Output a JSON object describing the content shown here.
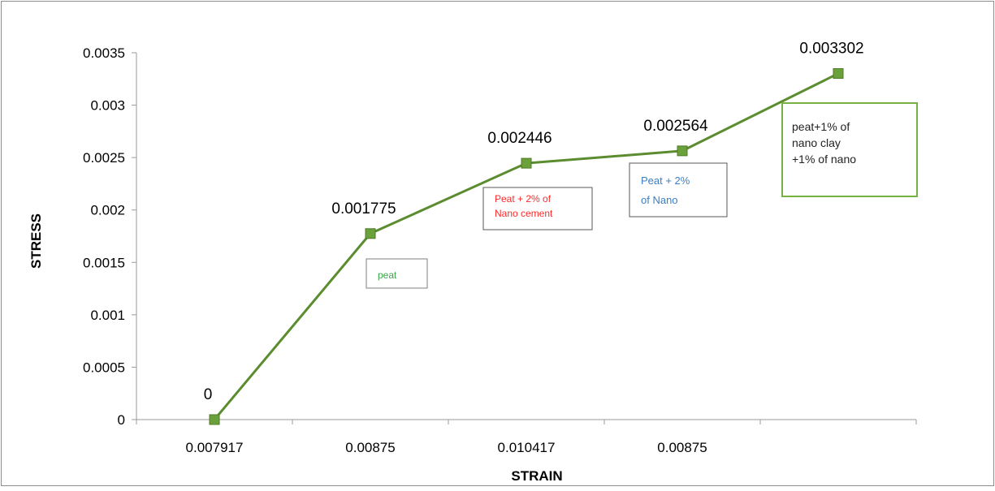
{
  "chart_data": {
    "type": "line",
    "title": "",
    "xlabel": "STRAIN",
    "ylabel": "STRESS",
    "categories": [
      "0.007917",
      "0.00875",
      "0.010417",
      "0.00875",
      ""
    ],
    "series": [
      {
        "values": [
          0,
          0.001775,
          0.002446,
          0.002564,
          0.003302
        ]
      }
    ],
    "data_labels": [
      "0",
      "0.001775",
      "0.002446",
      "0.002564",
      "0.003302"
    ],
    "ylim": [
      0,
      0.0035
    ],
    "yticks": [
      {
        "value": 0,
        "label": "0"
      },
      {
        "value": 0.0005,
        "label": "0.0005"
      },
      {
        "value": 0.001,
        "label": "0.001"
      },
      {
        "value": 0.0015,
        "label": "0.0015"
      },
      {
        "value": 0.002,
        "label": "0.002"
      },
      {
        "value": 0.0025,
        "label": "0.0025"
      },
      {
        "value": 0.003,
        "label": "0.003"
      },
      {
        "value": 0.0035,
        "label": "0.0035"
      }
    ],
    "grid": false,
    "legend": "none",
    "annotations": [
      {
        "lines": [
          "peat"
        ],
        "color": "#3aa64a",
        "border": "#7f7f7f"
      },
      {
        "lines": [
          "Peat + 2% of",
          "Nano cement"
        ],
        "color": "#ff2a2a",
        "border": "#595959"
      },
      {
        "lines": [
          "Peat + 2%",
          "of Nano"
        ],
        "color": "#3d7fc0",
        "border": "#595959"
      },
      {
        "lines": [
          "peat+1% of",
          "nano clay",
          "+1% of nano"
        ],
        "color": "#222222",
        "border": "#77b043"
      }
    ],
    "colors": {
      "line": "#5b8c2f",
      "marker": "#6aa13b",
      "axis": "#9a9a9a",
      "frame": "#8c8c8c"
    }
  }
}
